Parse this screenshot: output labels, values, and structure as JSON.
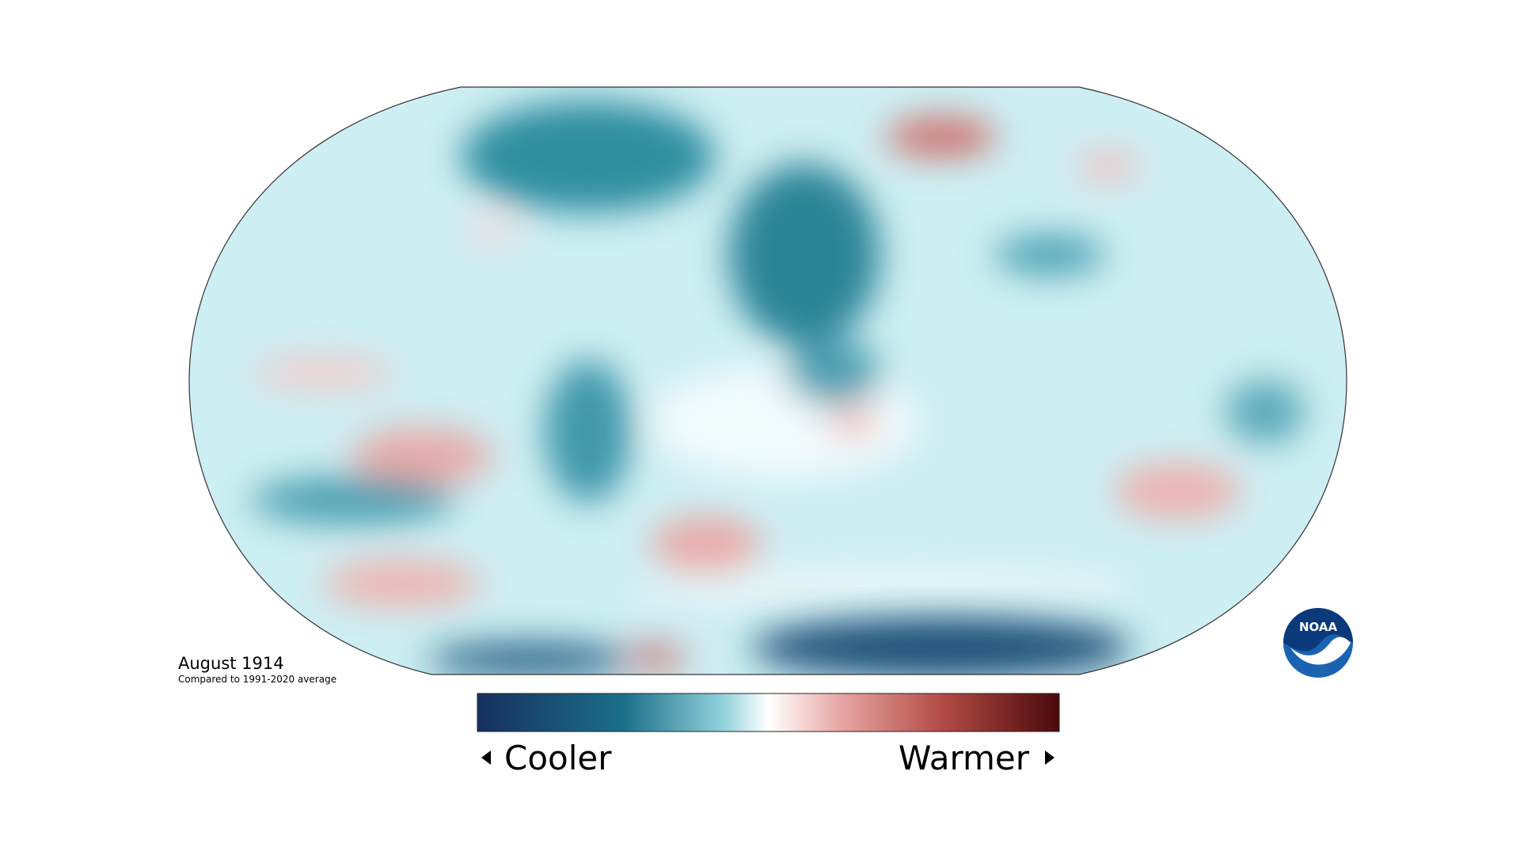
{
  "title": "August 1914",
  "subtitle": "Compared to 1991-2020 average",
  "legend": {
    "low": "Cooler",
    "high": "Warmer"
  },
  "logo": "NOAA"
}
